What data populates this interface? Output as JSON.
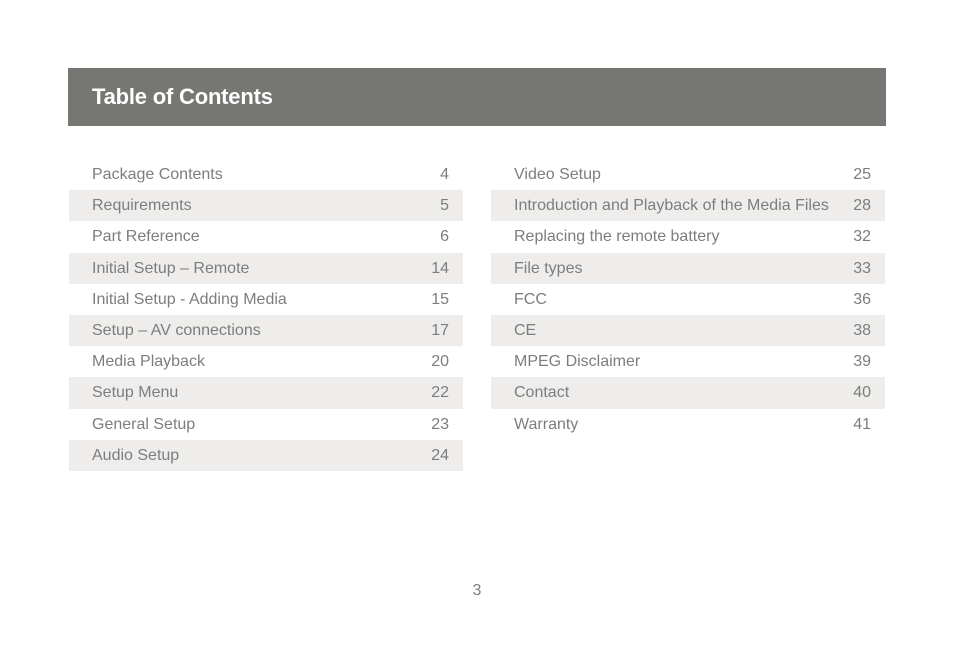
{
  "header": {
    "title": "Table of Contents",
    "background_color": "#767773"
  },
  "toc": {
    "left": [
      {
        "label": "Package Contents",
        "page": "4"
      },
      {
        "label": "Requirements",
        "page": "5"
      },
      {
        "label": "Part Reference",
        "page": "6"
      },
      {
        "label": "Initial Setup – Remote",
        "page": "14"
      },
      {
        "label": "Initial Setup - Adding Media",
        "page": "15"
      },
      {
        "label": "Setup – AV connections",
        "page": "17"
      },
      {
        "label": "Media Playback",
        "page": "20"
      },
      {
        "label": "Setup Menu",
        "page": "22"
      },
      {
        "label": "General Setup",
        "page": "23"
      },
      {
        "label": "Audio Setup",
        "page": "24"
      }
    ],
    "right": [
      {
        "label": "Video Setup",
        "page": "25"
      },
      {
        "label": "Introduction and Playback of the Media Files",
        "page": "28"
      },
      {
        "label": "Replacing the remote battery",
        "page": "32"
      },
      {
        "label": "File types",
        "page": "33"
      },
      {
        "label": "FCC",
        "page": "36"
      },
      {
        "label": "CE",
        "page": "38"
      },
      {
        "label": "MPEG Disclaimer",
        "page": "39"
      },
      {
        "label": "Contact",
        "page": "40"
      },
      {
        "label": "Warranty",
        "page": "41"
      }
    ],
    "row_shade_color": "#eeedeb",
    "text_color": "#7d7d7d"
  },
  "footer": {
    "page_number": "3"
  }
}
